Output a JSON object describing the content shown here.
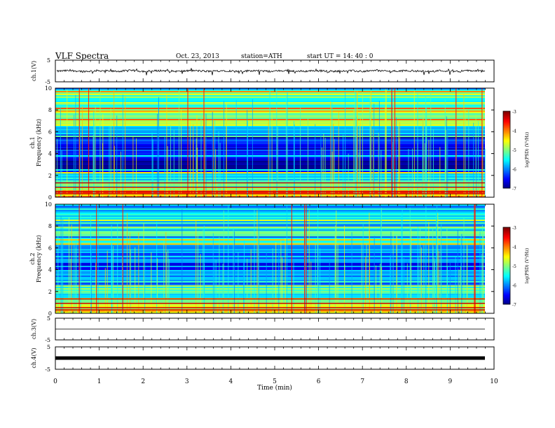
{
  "header": {
    "title": "VLF  Spectra",
    "date": "Oct. 23, 2013",
    "station": "station=ATH",
    "start": "start  UT  =   14: 40 : 0"
  },
  "chart_data": [
    {
      "type": "line",
      "panel": "ch1-waveform",
      "ylabel": "ch.1(V)",
      "ylim": [
        -5,
        5
      ],
      "yticks": [
        5,
        -5
      ],
      "xlim": [
        0,
        10
      ],
      "description_level": 0,
      "values_note": "noisy waveform around 0 V with spikes to about -1.5 V"
    },
    {
      "type": "heatmap",
      "panel": "ch1-spectrogram",
      "ylabel": "ch.1\nFrequency  (kHz)",
      "ylim": [
        0,
        10
      ],
      "yticks": [
        0,
        2,
        4,
        6,
        8,
        10
      ],
      "xlim": [
        0,
        9.8
      ],
      "colorbar": {
        "label": "log(PSD) (V²/Hz)",
        "range": [
          -7,
          -3
        ],
        "ticks": [
          -3,
          -4,
          -5,
          -6,
          -7
        ]
      },
      "bands": [
        {
          "f0": 0.0,
          "f1": 0.6,
          "level": -4.0
        },
        {
          "f0": 0.6,
          "f1": 2.4,
          "level": -5.3
        },
        {
          "f0": 2.4,
          "f1": 5.8,
          "level": -6.5
        },
        {
          "f0": 5.8,
          "f1": 6.6,
          "level": -5.8
        },
        {
          "f0": 6.6,
          "f1": 10.0,
          "level": -5.2
        }
      ]
    },
    {
      "type": "heatmap",
      "panel": "ch2-spectrogram",
      "ylabel": "ch.2\nFrequency  (kHz)",
      "ylim": [
        0,
        10
      ],
      "yticks": [
        0,
        2,
        4,
        6,
        8,
        10
      ],
      "xlim": [
        0,
        9.8
      ],
      "colorbar": {
        "label": "log(PSD) (V²/Hz)",
        "range": [
          -7,
          -3
        ],
        "ticks": [
          -3,
          -4,
          -5,
          -6,
          -7
        ]
      },
      "bands": [
        {
          "f0": 0.0,
          "f1": 0.8,
          "level": -4.6
        },
        {
          "f0": 0.8,
          "f1": 2.6,
          "level": -5.2
        },
        {
          "f0": 2.6,
          "f1": 6.0,
          "level": -6.2
        },
        {
          "f0": 6.0,
          "f1": 10.0,
          "level": -5.6
        }
      ]
    },
    {
      "type": "line",
      "panel": "ch3-waveform",
      "ylabel": "ch.3(V)",
      "ylim": [
        -5,
        5
      ],
      "yticks": [
        5,
        -5
      ],
      "xlim": [
        0,
        10
      ],
      "level": 0
    },
    {
      "type": "line",
      "panel": "ch4-waveform",
      "ylabel": "ch.4(V)",
      "ylim": [
        -5,
        5
      ],
      "yticks": [
        5,
        -5
      ],
      "xlim": [
        0,
        10
      ],
      "level": 0
    }
  ],
  "xaxis": {
    "label": "Time  (min)",
    "ticks": [
      0,
      1,
      2,
      3,
      4,
      5,
      6,
      7,
      8,
      9,
      10
    ]
  }
}
